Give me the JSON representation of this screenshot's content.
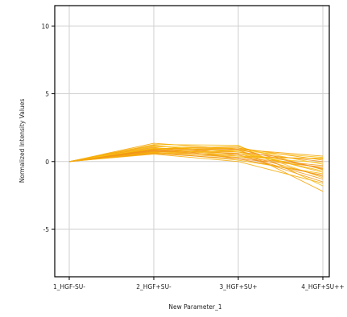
{
  "chart_data": {
    "type": "line",
    "xlabel": "New Parameter_1",
    "ylabel": "Normalized Intensity Values",
    "categories": [
      "1_HGF-SU-",
      "2_HGF+SU-",
      "3_HGF+SU+",
      "4_HGF+SU++"
    ],
    "yticks": [
      10,
      5,
      0,
      -5
    ],
    "ylim": [
      -8.5,
      11.5
    ],
    "grid": true,
    "legend": "none",
    "colors": [
      "#f5a300",
      "#f7b800",
      "#f29a1a",
      "#f8c21a",
      "#ef8f1f",
      "#f6ad0a"
    ],
    "series": [
      {
        "values": [
          0,
          1.35,
          0.9,
          -2.2
        ]
      },
      {
        "values": [
          0,
          1.25,
          1.2,
          -1.8
        ]
      },
      {
        "values": [
          0,
          1.2,
          0.5,
          -1.5
        ]
      },
      {
        "values": [
          0,
          1.1,
          1.0,
          -1.2
        ]
      },
      {
        "values": [
          0,
          1.05,
          0.2,
          -1.0
        ]
      },
      {
        "values": [
          0,
          1.0,
          0.8,
          -0.8
        ]
      },
      {
        "values": [
          0,
          0.95,
          1.1,
          -0.6
        ]
      },
      {
        "values": [
          0,
          0.9,
          0.6,
          -0.5
        ]
      },
      {
        "values": [
          0,
          0.85,
          0.3,
          -0.3
        ]
      },
      {
        "values": [
          0,
          0.8,
          1.0,
          -0.2
        ]
      },
      {
        "values": [
          0,
          0.8,
          0.7,
          0.0
        ]
      },
      {
        "values": [
          0,
          0.75,
          0.4,
          0.2
        ]
      },
      {
        "values": [
          0,
          0.7,
          0.9,
          0.4
        ]
      },
      {
        "values": [
          0,
          0.7,
          0.1,
          -0.9
        ]
      },
      {
        "values": [
          0,
          0.65,
          0.5,
          -1.3
        ]
      },
      {
        "values": [
          0,
          0.6,
          0.8,
          0.3
        ]
      },
      {
        "values": [
          0,
          0.6,
          0.2,
          -0.4
        ]
      },
      {
        "values": [
          0,
          0.55,
          0.0,
          -1.6
        ]
      },
      {
        "values": [
          0,
          0.9,
          1.0,
          0.1
        ]
      },
      {
        "values": [
          0,
          1.15,
          0.7,
          -0.7
        ]
      },
      {
        "values": [
          0,
          0.75,
          0.6,
          -1.1
        ]
      },
      {
        "values": [
          0,
          1.0,
          0.4,
          -0.1
        ]
      },
      {
        "values": [
          0,
          0.85,
          0.9,
          -0.55
        ]
      },
      {
        "values": [
          0,
          0.65,
          0.3,
          0.25
        ]
      }
    ]
  }
}
